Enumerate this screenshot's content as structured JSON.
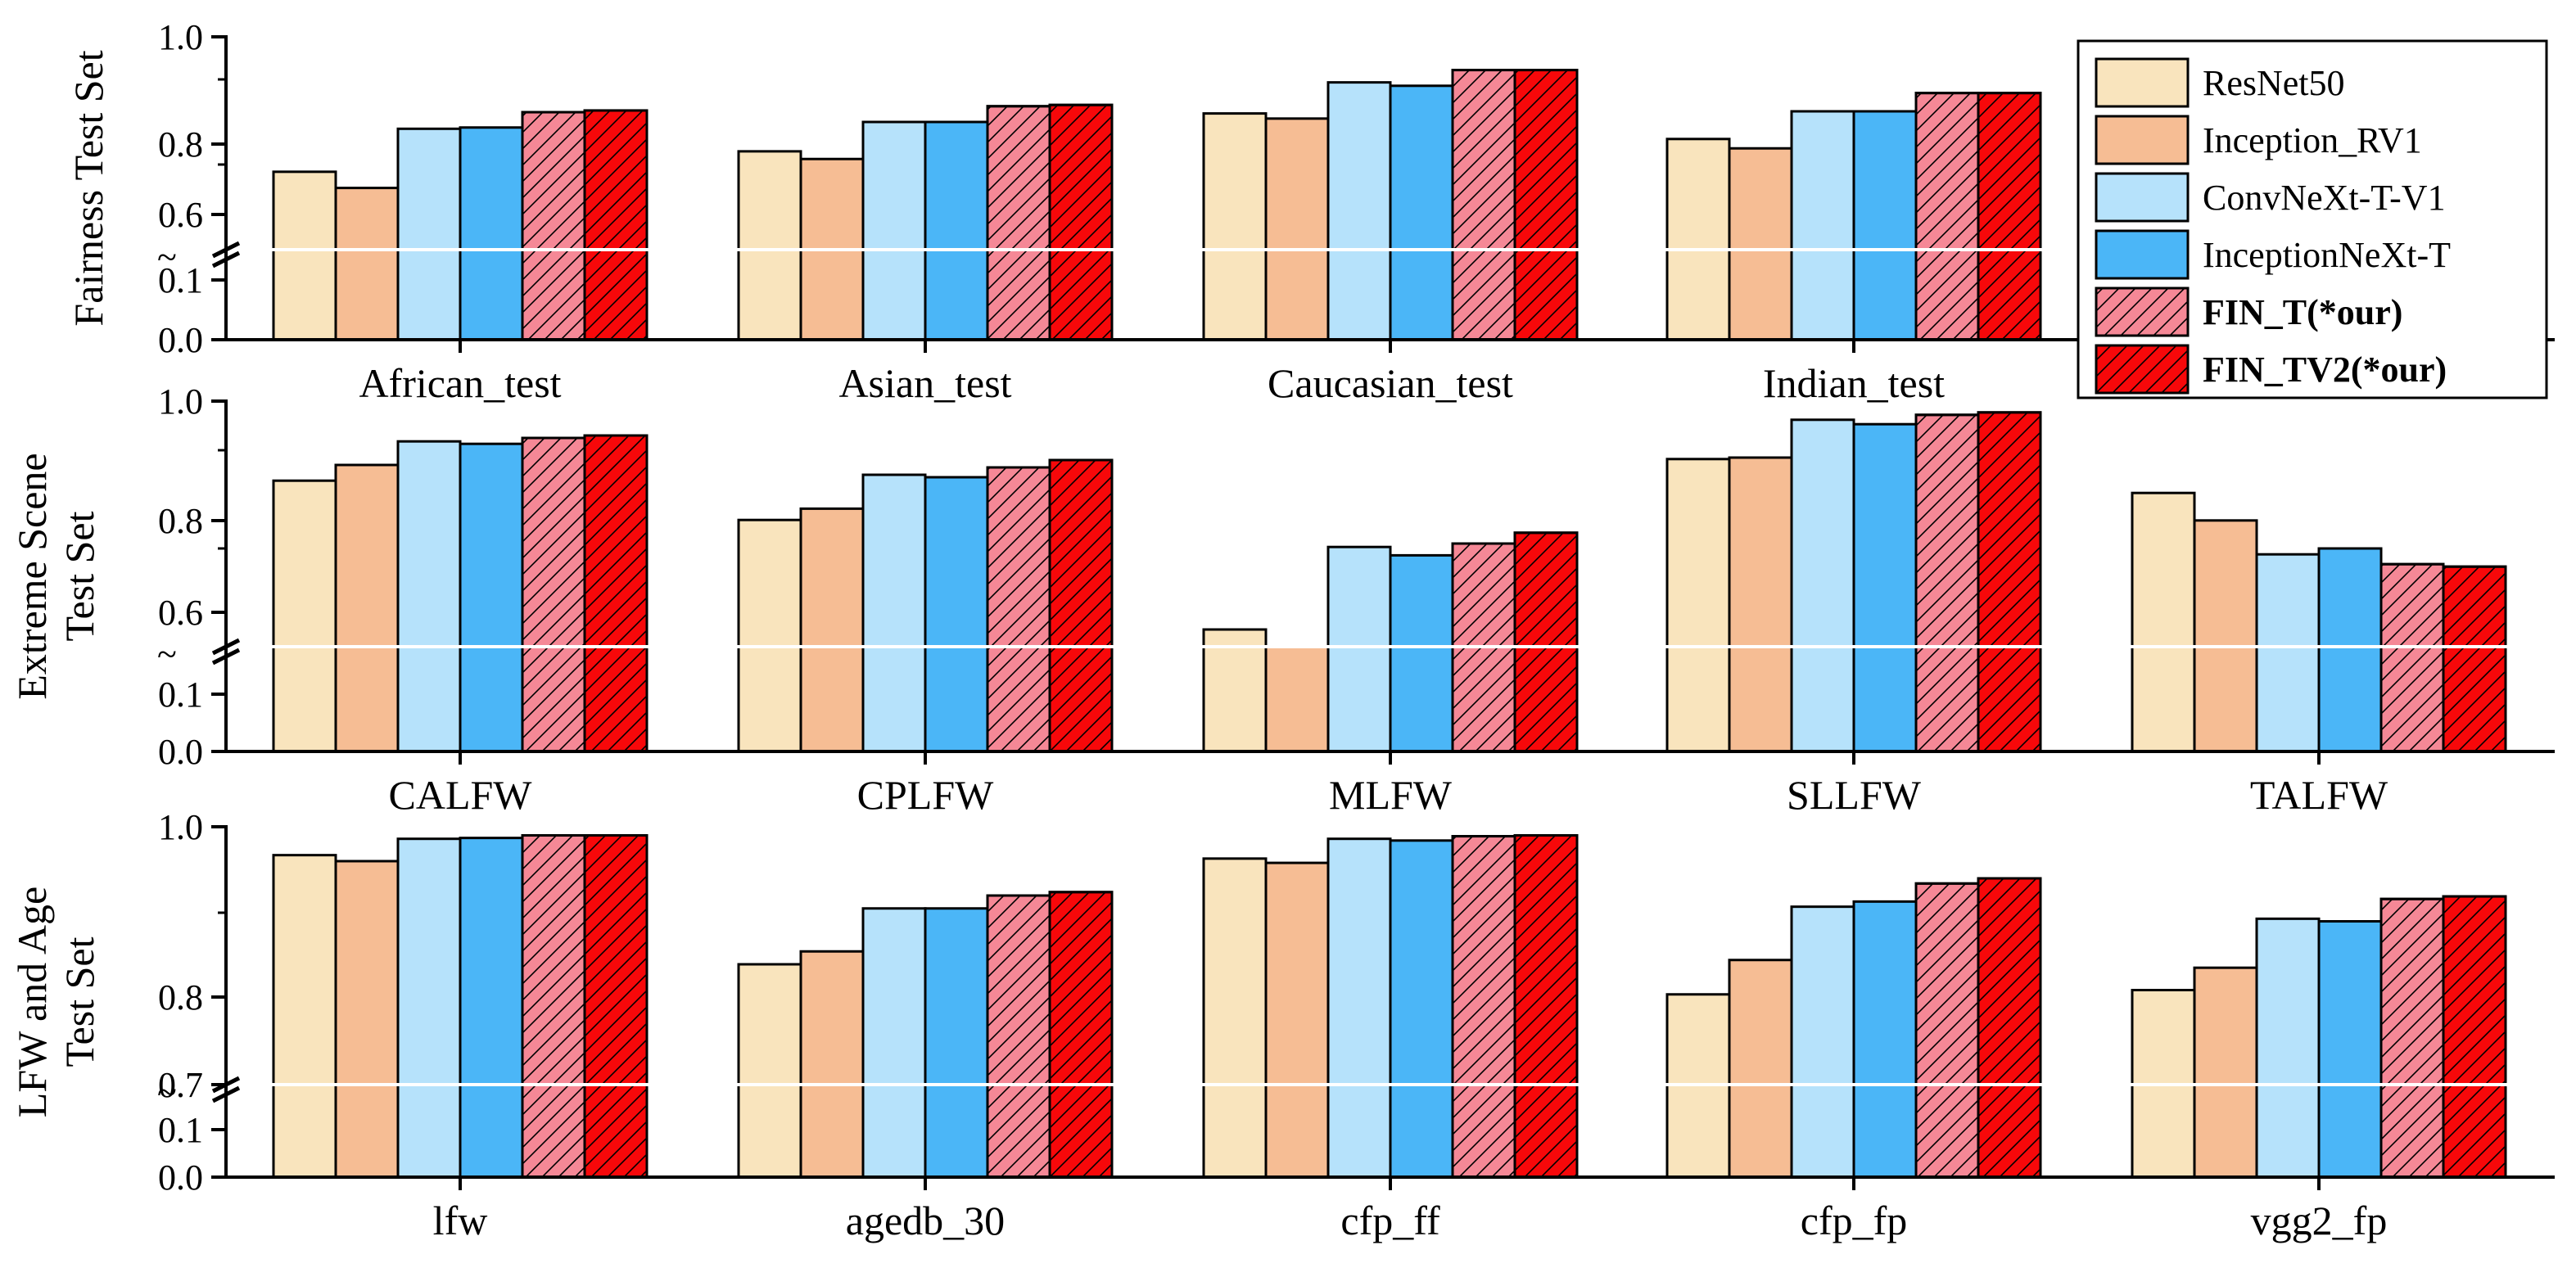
{
  "legend": [
    {
      "name": "ResNet50",
      "color": "#f9e4bd",
      "hatch": false,
      "bold": false
    },
    {
      "name": "Inception_RV1",
      "color": "#f6bd94",
      "hatch": false,
      "bold": false
    },
    {
      "name": "ConvNeXt-T-V1",
      "color": "#b6e2fb",
      "hatch": false,
      "bold": false
    },
    {
      "name": "InceptionNeXt-T",
      "color": "#4bb6f7",
      "hatch": false,
      "bold": false
    },
    {
      "name": "FIN_T(*our)",
      "color": "#f58896",
      "hatch": true,
      "bold": true
    },
    {
      "name": "FIN_TV2(*our)",
      "color": "#f7080a",
      "hatch": true,
      "bold": true
    }
  ],
  "break_symbol": "~",
  "chart_data": [
    {
      "type": "bar",
      "ylabel": [
        "Fairness Test Set"
      ],
      "categories": [
        "African_test",
        "Asian_test",
        "Caucasian_test",
        "Indian_test"
      ],
      "yticks": [
        "0.0",
        "0.1",
        "0.6",
        "0.8",
        "1.0"
      ],
      "ylim_lower": [
        0,
        0.15
      ],
      "ylim_upper": [
        0.5,
        1.0
      ],
      "series": [
        {
          "name": "ResNet50",
          "values": [
            0.683,
            0.731,
            0.82,
            0.76
          ]
        },
        {
          "name": "Inception_RV1",
          "values": [
            0.645,
            0.713,
            0.808,
            0.738
          ]
        },
        {
          "name": "ConvNeXt-T-V1",
          "values": [
            0.784,
            0.8,
            0.893,
            0.825
          ]
        },
        {
          "name": "InceptionNeXt-T",
          "values": [
            0.787,
            0.8,
            0.885,
            0.825
          ]
        },
        {
          "name": "FIN_T(*our)",
          "values": [
            0.823,
            0.837,
            0.922,
            0.868
          ]
        },
        {
          "name": "FIN_TV2(*our)",
          "values": [
            0.827,
            0.84,
            0.922,
            0.868
          ]
        }
      ]
    },
    {
      "type": "bar",
      "ylabel": [
        "Extreme Scene",
        "Test Set"
      ],
      "categories": [
        "CALFW",
        "CPLFW",
        "MLFW",
        "SLLFW",
        "TALFW"
      ],
      "yticks": [
        "0.0",
        "0.1",
        "0.6",
        "0.8",
        "1.0"
      ],
      "ylim_lower": [
        0,
        0.15
      ],
      "ylim_upper": [
        0.5,
        1.0
      ],
      "series": [
        {
          "name": "ResNet50",
          "values": [
            0.838,
            0.758,
            0.535,
            0.882,
            0.813
          ]
        },
        {
          "name": "Inception_RV1",
          "values": [
            0.87,
            0.781,
            0.5,
            0.885,
            0.757
          ]
        },
        {
          "name": "ConvNeXt-T-V1",
          "values": [
            0.918,
            0.85,
            0.703,
            0.962,
            0.688
          ]
        },
        {
          "name": "InceptionNeXt-T",
          "values": [
            0.913,
            0.845,
            0.686,
            0.953,
            0.7
          ]
        },
        {
          "name": "FIN_T(*our)",
          "values": [
            0.925,
            0.865,
            0.71,
            0.972,
            0.668
          ]
        },
        {
          "name": "FIN_TV2(*our)",
          "values": [
            0.93,
            0.88,
            0.732,
            0.977,
            0.663
          ]
        }
      ]
    },
    {
      "type": "bar",
      "ylabel": [
        "LFW and Age",
        "Test Set"
      ],
      "categories": [
        "lfw",
        "agedb_30",
        "cfp_ff",
        "cfp_fp",
        "vgg2_fp"
      ],
      "yticks": [
        "0.0",
        "0.1",
        "0.7",
        "0.8",
        "1.0"
      ],
      "ylim_lower": [
        0,
        0.15
      ],
      "ylim_upper": [
        0.7,
        1.0
      ],
      "series": [
        {
          "name": "ResNet50",
          "values": [
            0.967,
            0.84,
            0.963,
            0.805,
            0.81
          ]
        },
        {
          "name": "Inception_RV1",
          "values": [
            0.96,
            0.855,
            0.958,
            0.845,
            0.836
          ]
        },
        {
          "name": "ConvNeXt-T-V1",
          "values": [
            0.986,
            0.905,
            0.986,
            0.907,
            0.893
          ]
        },
        {
          "name": "InceptionNeXt-T",
          "values": [
            0.987,
            0.905,
            0.984,
            0.913,
            0.89
          ]
        },
        {
          "name": "FIN_T(*our)",
          "values": [
            0.99,
            0.92,
            0.989,
            0.934,
            0.916
          ]
        },
        {
          "name": "FIN_TV2(*our)",
          "values": [
            0.99,
            0.924,
            0.99,
            0.94,
            0.919
          ]
        }
      ]
    }
  ]
}
